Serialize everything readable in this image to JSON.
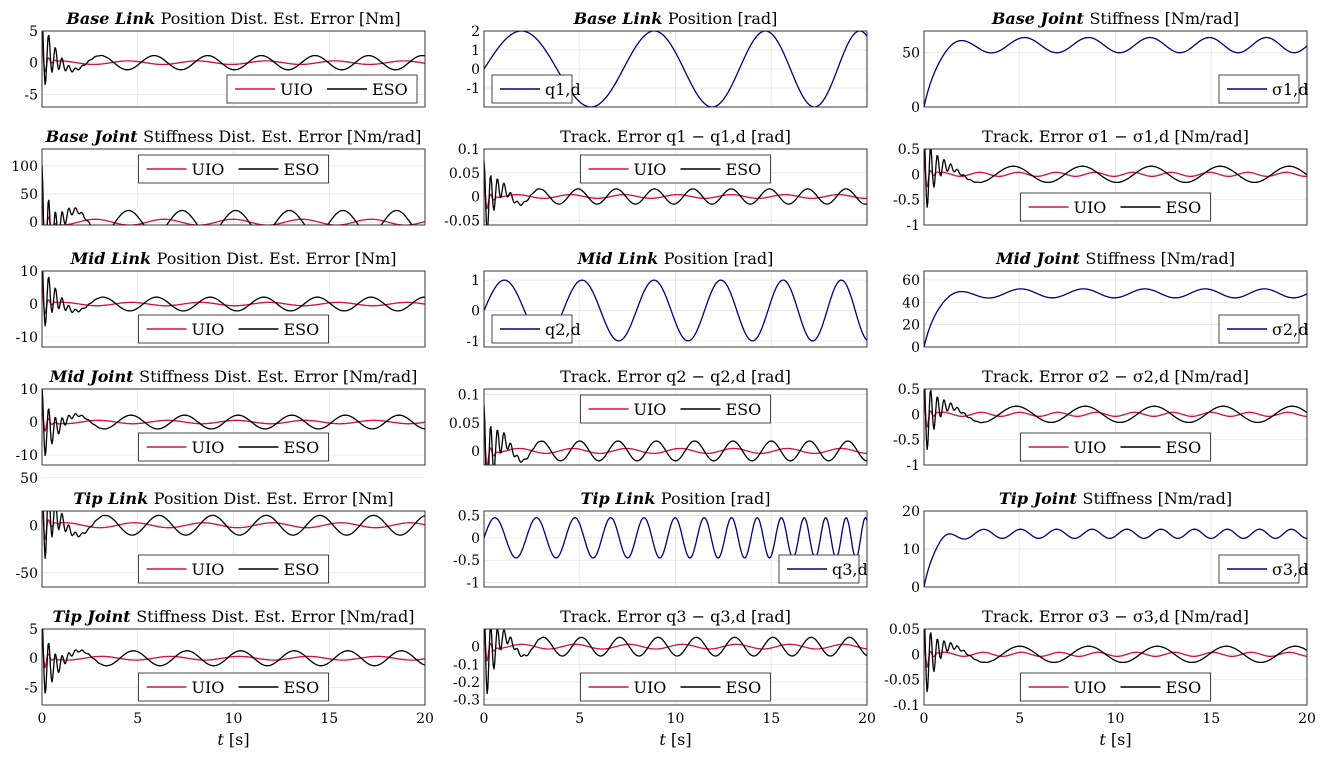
{
  "colors": {
    "uio": "#d0104c",
    "eso": "#000000",
    "ref": "#00007a"
  },
  "x_axis": {
    "label_var": "t",
    "label_unit": "[s]",
    "ticks": [
      0,
      5,
      10,
      15,
      20
    ],
    "range": [
      0,
      20
    ]
  },
  "chart_data": [
    {
      "id": "p0",
      "type": "line",
      "title_bold": "Base Link",
      "title_rest": "Position Dist. Est. Error [Nm]",
      "ylim": [
        -7,
        5
      ],
      "yticks": [
        5,
        0,
        -5
      ],
      "legend": "bottom-right",
      "series": [
        {
          "name": "UIO",
          "kind": "uio"
        },
        {
          "name": "ESO",
          "kind": "eso"
        }
      ]
    },
    {
      "id": "p1",
      "type": "line",
      "title_bold": "Base Link",
      "title_rest": "Position [rad]",
      "ylim": [
        -2,
        2
      ],
      "yticks": [
        2,
        1,
        0,
        -1
      ],
      "legend": "bottom-left",
      "series": [
        {
          "name": "q1,d",
          "kind": "ref",
          "wave": {
            "offset": 0,
            "amp": 2,
            "period": [
              6,
              8
            ],
            "phase": 0,
            "tau": 0
          }
        }
      ]
    },
    {
      "id": "p2",
      "type": "line",
      "title_bold": "Base Joint",
      "title_rest": "Stiffness [Nm/rad]",
      "ylim": [
        0,
        70
      ],
      "yticks": [
        50,
        0
      ],
      "legend": "bottom-right",
      "series": [
        {
          "name": "σ1,d",
          "kind": "ref",
          "wave": {
            "offset": 57,
            "amp": 7,
            "period": [
              3.2,
              3.6
            ],
            "phase": -0.5,
            "tau": 0.6
          }
        }
      ]
    },
    {
      "id": "p3",
      "type": "line",
      "title_bold": "Base Joint",
      "title_rest": "Stiffness Dist. Est. Error [Nm/rad]",
      "ylim": [
        -5,
        130
      ],
      "yticks": [
        100,
        50,
        0
      ],
      "legend": "top-center",
      "series": [
        {
          "name": "UIO",
          "kind": "uio"
        },
        {
          "name": "ESO",
          "kind": "eso"
        }
      ]
    },
    {
      "id": "p4",
      "type": "line",
      "title_bold": "",
      "title_rest": "Track. Error q1 − q1,d [rad]",
      "ylim": [
        -0.06,
        0.1
      ],
      "yticks": [
        0.1,
        0.05,
        0,
        -0.05
      ],
      "legend": "top-center",
      "series": [
        {
          "name": "UIO",
          "kind": "uio"
        },
        {
          "name": "ESO",
          "kind": "eso"
        }
      ]
    },
    {
      "id": "p5",
      "type": "line",
      "title_bold": "",
      "title_rest": "Track. Error σ1 − σ1,d [Nm/rad]",
      "ylim": [
        -1,
        0.5
      ],
      "yticks": [
        0.5,
        0,
        -0.5,
        -1
      ],
      "legend": "bottom-center",
      "series": [
        {
          "name": "UIO",
          "kind": "uio"
        },
        {
          "name": "ESO",
          "kind": "eso"
        }
      ]
    },
    {
      "id": "p6",
      "type": "line",
      "title_bold": "Mid Link",
      "title_rest": "Position Dist. Est. Error [Nm]",
      "ylim": [
        -13,
        10
      ],
      "yticks": [
        10,
        0,
        -10
      ],
      "legend": "bottom-center",
      "series": [
        {
          "name": "UIO",
          "kind": "uio"
        },
        {
          "name": "ESO",
          "kind": "eso"
        }
      ]
    },
    {
      "id": "p7",
      "type": "line",
      "title_bold": "Mid Link",
      "title_rest": "Position [rad]",
      "ylim": [
        -1.2,
        1.3
      ],
      "yticks": [
        1,
        0,
        -1
      ],
      "legend": "bottom-left",
      "series": [
        {
          "name": "q2,d",
          "kind": "ref",
          "wave": {
            "offset": 0,
            "amp": 1,
            "period": [
              3.5,
              4.3
            ],
            "phase": 0,
            "tau": 0
          }
        }
      ]
    },
    {
      "id": "p8",
      "type": "line",
      "title_bold": "Mid Joint",
      "title_rest": "Stiffness [Nm/rad]",
      "ylim": [
        0,
        68
      ],
      "yticks": [
        60,
        40,
        20,
        0
      ],
      "legend": "bottom-right",
      "series": [
        {
          "name": "σ2,d",
          "kind": "ref",
          "wave": {
            "offset": 48,
            "amp": 4,
            "period": [
              3.2,
              3.4
            ],
            "phase": -0.5,
            "tau": 0.6
          }
        }
      ]
    },
    {
      "id": "p9",
      "type": "line",
      "title_bold": "Mid Joint",
      "title_rest": "Stiffness Dist. Est. Error [Nm/rad]",
      "ylim": [
        -13,
        10
      ],
      "yticks": [
        10,
        0,
        -10
      ],
      "legend": "bottom-center",
      "series": [
        {
          "name": "UIO",
          "kind": "uio"
        },
        {
          "name": "ESO",
          "kind": "eso"
        }
      ]
    },
    {
      "id": "p10",
      "type": "line",
      "title_bold": "",
      "title_rest": "Track. Error q2 − q2,d [rad]",
      "ylim": [
        -0.025,
        0.11
      ],
      "yticks": [
        0.1,
        0.05,
        0
      ],
      "legend": "top-center",
      "series": [
        {
          "name": "UIO",
          "kind": "uio"
        },
        {
          "name": "ESO",
          "kind": "eso"
        }
      ]
    },
    {
      "id": "p11",
      "type": "line",
      "title_bold": "",
      "title_rest": "Track. Error σ2 − σ2,d [Nm/rad]",
      "ylim": [
        -1,
        0.5
      ],
      "yticks": [
        0.5,
        0,
        -0.5,
        -1
      ],
      "legend": "bottom-center",
      "series": [
        {
          "name": "UIO",
          "kind": "uio"
        },
        {
          "name": "ESO",
          "kind": "eso"
        }
      ]
    },
    {
      "id": "p12",
      "type": "line",
      "title_bold": "Tip Link",
      "title_rest": "Position Dist. Est. Error [Nm]",
      "ylim": [
        -65,
        15
      ],
      "yticks": [
        50,
        0,
        -50
      ],
      "legend": "bottom-center",
      "series": [
        {
          "name": "UIO",
          "kind": "uio"
        },
        {
          "name": "ESO",
          "kind": "eso"
        }
      ]
    },
    {
      "id": "p13",
      "type": "line",
      "title_bold": "Tip Link",
      "title_rest": "Position [rad]",
      "ylim": [
        -1.1,
        0.6
      ],
      "yticks": [
        0.5,
        0,
        -0.5,
        -1
      ],
      "legend": "bottom-right",
      "series": [
        {
          "name": "q3,d",
          "kind": "ref",
          "wave": {
            "offset": 0,
            "amp": 0.45,
            "period": [
              1.5,
              2.3
            ],
            "phase": 0,
            "tau": 0
          }
        }
      ]
    },
    {
      "id": "p14",
      "type": "line",
      "title_bold": "Tip Joint",
      "title_rest": "Stiffness [Nm/rad]",
      "ylim": [
        0,
        20
      ],
      "yticks": [
        20,
        10,
        0
      ],
      "legend": "bottom-right",
      "series": [
        {
          "name": "σ3,d",
          "kind": "ref",
          "wave": {
            "offset": 14,
            "amp": 1.2,
            "period": [
              1.8,
              2
            ],
            "phase": -0.5,
            "tau": 0.5
          }
        }
      ]
    },
    {
      "id": "p15",
      "type": "line",
      "title_bold": "Tip Joint",
      "title_rest": "Stiffness Dist. Est. Error [Nm/rad]",
      "ylim": [
        -8,
        5
      ],
      "yticks": [
        5,
        0,
        -5
      ],
      "legend": "bottom-center",
      "series": [
        {
          "name": "UIO",
          "kind": "uio"
        },
        {
          "name": "ESO",
          "kind": "eso"
        }
      ]
    },
    {
      "id": "p16",
      "type": "line",
      "title_bold": "",
      "title_rest": "Track. Error q3 − q3,d [rad]",
      "ylim": [
        -0.33,
        0.1
      ],
      "yticks": [
        -0.1,
        -0.2,
        -0.3
      ],
      "ytick_prefix": [
        "0"
      ],
      "legend": "bottom-center",
      "series": [
        {
          "name": "UIO",
          "kind": "uio"
        },
        {
          "name": "ESO",
          "kind": "eso"
        }
      ]
    },
    {
      "id": "p17",
      "type": "line",
      "title_bold": "",
      "title_rest": "Track. Error σ3 − σ3,d [Nm/rad]",
      "ylim": [
        -0.1,
        0.05
      ],
      "yticks": [
        0.05,
        0,
        -0.05,
        -0.1
      ],
      "legend": "bottom-center",
      "series": [
        {
          "name": "UIO",
          "kind": "uio"
        },
        {
          "name": "ESO",
          "kind": "eso"
        }
      ]
    }
  ]
}
